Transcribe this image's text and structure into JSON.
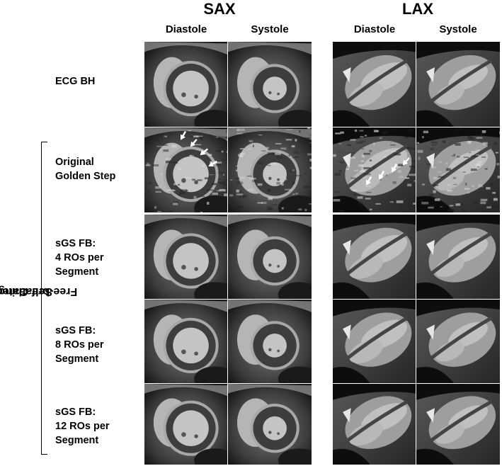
{
  "group_titles": {
    "sax": "SAX",
    "lax": "LAX"
  },
  "column_labels": {
    "sax_diastole": "Diastole",
    "sax_systole": "Systole",
    "lax_diastole": "Diastole",
    "lax_systole": "Systole"
  },
  "side_title": {
    "line1": "Free-breathing, ECG-free",
    "line2": "Self-Gated"
  },
  "rows": [
    {
      "lines": [
        "ECG BH"
      ]
    },
    {
      "lines": [
        "Original",
        "Golden Step"
      ]
    },
    {
      "lines": [
        "sGS FB:",
        "4 ROs per",
        "Segment"
      ]
    },
    {
      "lines": [
        "sGS FB:",
        "8 ROs per",
        "Segment"
      ]
    },
    {
      "lines": [
        "sGS FB:",
        "12 ROs per",
        "Segment"
      ]
    }
  ]
}
